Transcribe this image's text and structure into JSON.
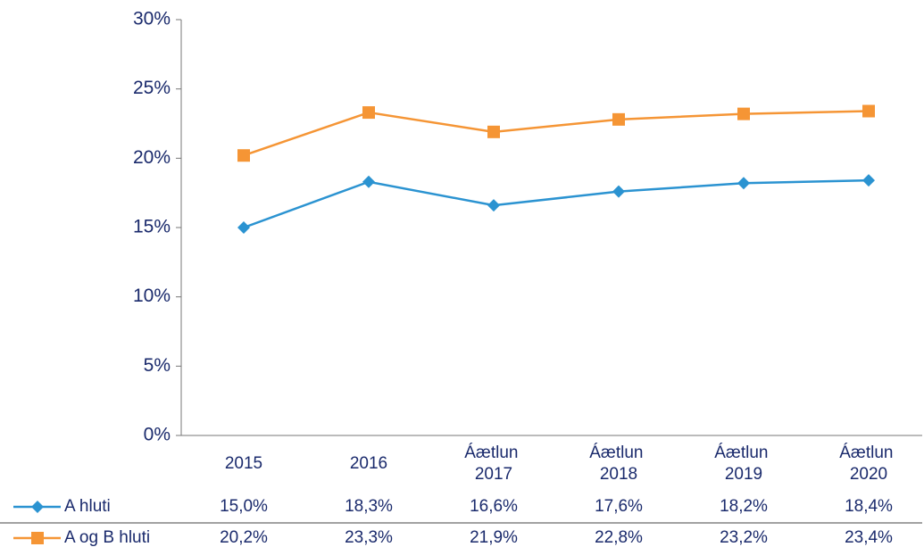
{
  "chart_data": {
    "type": "line",
    "categories": [
      "2015",
      "2016",
      "Áætlun 2017",
      "Áætlun 2018",
      "Áætlun 2019",
      "Áætlun 2020"
    ],
    "series": [
      {
        "name": "A hluti",
        "color": "#2b93d1",
        "marker": "diamond",
        "values": [
          15.0,
          18.3,
          16.6,
          17.6,
          18.2,
          18.4
        ],
        "value_labels": [
          "15,0%",
          "18,3%",
          "16,6%",
          "17,6%",
          "18,2%",
          "18,4%"
        ]
      },
      {
        "name": "A og B hluti",
        "color": "#f59535",
        "marker": "square",
        "values": [
          20.2,
          23.3,
          21.9,
          22.8,
          23.2,
          23.4
        ],
        "value_labels": [
          "20,2%",
          "23,3%",
          "21,9%",
          "22,8%",
          "23,2%",
          "23,4%"
        ]
      }
    ],
    "ylim": [
      0,
      30
    ],
    "yticks": [
      {
        "value": 0,
        "label": "0%"
      },
      {
        "value": 5,
        "label": "5%"
      },
      {
        "value": 10,
        "label": "10%"
      },
      {
        "value": 15,
        "label": "15%"
      },
      {
        "value": 20,
        "label": "20%"
      },
      {
        "value": 25,
        "label": "25%"
      },
      {
        "value": 30,
        "label": "30%"
      }
    ],
    "grid": false
  }
}
